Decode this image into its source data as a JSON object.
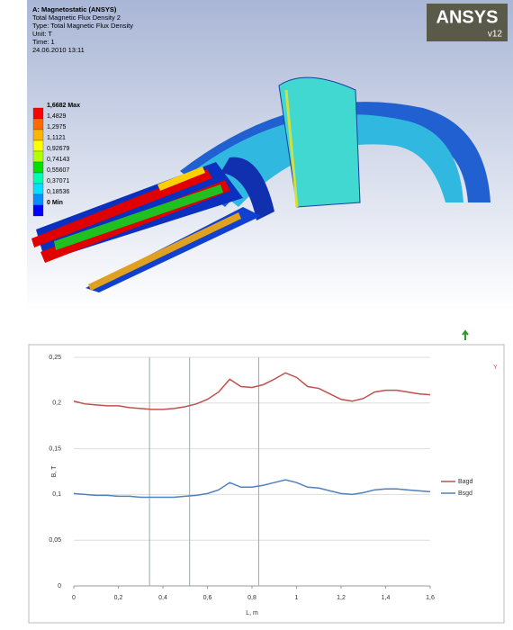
{
  "ansys": {
    "header": [
      "A: Magnetostatic (ANSYS)",
      "Total Magnetic Flux Density 2",
      "Type: Total Magnetic Flux Density",
      "Unit: T",
      "Time: 1",
      "24.06.2010 13:11"
    ],
    "logo": "ANSYS",
    "version": "v12",
    "legend": {
      "max": "1,6682 Max",
      "levels": [
        "1,4829",
        "1,2975",
        "1,1121",
        "0,92679",
        "0,74143",
        "0,55607",
        "0,37071",
        "0,18536"
      ],
      "min": "0 Min",
      "colors": [
        "#ff0000",
        "#ff6a00",
        "#ffb400",
        "#ffff00",
        "#b4ff00",
        "#00e000",
        "#00ffb0",
        "#00e0ff",
        "#0090ff",
        "#0000ff"
      ]
    }
  },
  "chart_data": {
    "type": "line",
    "x_label": "L, m",
    "y_label": "B, T",
    "annotation": "Y",
    "x": [
      0,
      0.05,
      0.1,
      0.15,
      0.2,
      0.25,
      0.3,
      0.35,
      0.4,
      0.45,
      0.5,
      0.55,
      0.6,
      0.65,
      0.7,
      0.75,
      0.8,
      0.85,
      0.9,
      0.95,
      1.0,
      1.05,
      1.1,
      1.15,
      1.2,
      1.25,
      1.3,
      1.35,
      1.4,
      1.45,
      1.5,
      1.55,
      1.6
    ],
    "series": [
      {
        "name": "Bagd",
        "color": "#c0504d",
        "values": [
          0.202,
          0.199,
          0.198,
          0.197,
          0.197,
          0.195,
          0.194,
          0.193,
          0.193,
          0.194,
          0.196,
          0.199,
          0.204,
          0.212,
          0.226,
          0.218,
          0.217,
          0.22,
          0.226,
          0.233,
          0.228,
          0.218,
          0.216,
          0.21,
          0.204,
          0.202,
          0.205,
          0.212,
          0.214,
          0.214,
          0.212,
          0.21,
          0.209
        ]
      },
      {
        "name": "Bsgd",
        "color": "#4f81bd",
        "values": [
          0.101,
          0.1,
          0.099,
          0.099,
          0.098,
          0.098,
          0.097,
          0.097,
          0.097,
          0.097,
          0.098,
          0.099,
          0.101,
          0.105,
          0.113,
          0.108,
          0.108,
          0.11,
          0.113,
          0.116,
          0.113,
          0.108,
          0.107,
          0.104,
          0.101,
          0.1,
          0.102,
          0.105,
          0.106,
          0.106,
          0.105,
          0.104,
          0.103
        ]
      }
    ],
    "vlines": [
      0.34,
      0.52,
      0.83
    ],
    "xlim": [
      0,
      1.6
    ],
    "ylim": [
      0,
      0.25
    ],
    "xticks": [
      0,
      {
        "value": 0.2,
        "label": "0,2"
      },
      {
        "value": 0.4,
        "label": "0,4"
      },
      {
        "value": 0.6,
        "label": "0,6"
      },
      {
        "value": 0.8,
        "label": "0,8"
      },
      1,
      {
        "value": 1.2,
        "label": "1,2"
      },
      {
        "value": 1.4,
        "label": "1,4"
      },
      {
        "value": 1.6,
        "label": "1,6"
      }
    ],
    "yticks": [
      0,
      {
        "value": 0.05,
        "label": "0,05"
      },
      {
        "value": 0.1,
        "label": "0,1"
      },
      {
        "value": 0.15,
        "label": "0,15"
      },
      {
        "value": 0.2,
        "label": "0,2"
      },
      {
        "value": 0.25,
        "label": "0,25"
      }
    ],
    "grid": true
  }
}
